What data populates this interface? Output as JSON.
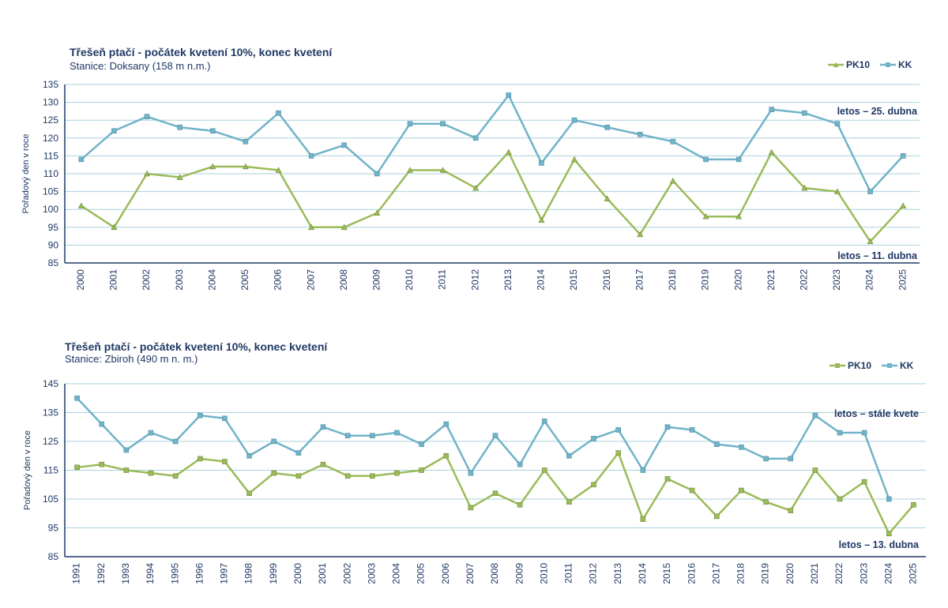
{
  "colors": {
    "pk10": "#9bbb59",
    "kk": "#71b3c8",
    "text": "#1f3864",
    "grid": "#a9d1de",
    "axis": "#1f3864"
  },
  "chart_data": [
    {
      "type": "line",
      "title": "Třešeň ptačí - počátek kvetení 10%, konec kvetení",
      "subtitle": "Stanice: Doksany (158 m n.m.)",
      "ylabel": "Pořadový den v roce",
      "ylim": [
        85,
        135
      ],
      "ystep": 5,
      "grid": true,
      "legend_position": "top-right",
      "categories": [
        "2000",
        "2001",
        "2002",
        "2003",
        "2004",
        "2005",
        "2006",
        "2007",
        "2008",
        "2009",
        "2010",
        "2011",
        "2012",
        "2013",
        "2014",
        "2015",
        "2016",
        "2017",
        "2018",
        "2019",
        "2020",
        "2021",
        "2022",
        "2023",
        "2024",
        "2025"
      ],
      "series": [
        {
          "name": "PK10",
          "color": "#9bbb59",
          "marker": "triangle",
          "values": [
            101,
            95,
            110,
            109,
            112,
            112,
            111,
            95,
            95,
            99,
            111,
            111,
            106,
            116,
            97,
            114,
            103,
            93,
            108,
            98,
            98,
            116,
            106,
            105,
            91,
            101
          ]
        },
        {
          "name": "KK",
          "color": "#71b3c8",
          "marker": "square",
          "values": [
            114,
            122,
            126,
            123,
            122,
            119,
            127,
            115,
            118,
            110,
            124,
            124,
            120,
            132,
            113,
            125,
            123,
            121,
            119,
            114,
            114,
            128,
            127,
            124,
            105,
            115
          ]
        }
      ],
      "annotations": [
        "letos – 25. dubna",
        "letos – 11. dubna"
      ]
    },
    {
      "type": "line",
      "title": "Třešeň ptačí - počátek kvetení 10%, konec kvetení",
      "subtitle": "Stanice: Zbiroh (490 m n. m.)",
      "ylabel": "Pořadový den v roce",
      "ylim": [
        85,
        145
      ],
      "ystep": 10,
      "grid": true,
      "legend_position": "top-right",
      "categories": [
        "1991",
        "1992",
        "1993",
        "1994",
        "1995",
        "1996",
        "1997",
        "1998",
        "1999",
        "2000",
        "2001",
        "2002",
        "2003",
        "2004",
        "2005",
        "2006",
        "2007",
        "2008",
        "2009",
        "2010",
        "2011",
        "2012",
        "2013",
        "2014",
        "2015",
        "2016",
        "2017",
        "2018",
        "2019",
        "2020",
        "2021",
        "2022",
        "2023",
        "2024",
        "2025"
      ],
      "series": [
        {
          "name": "PK10",
          "color": "#9bbb59",
          "marker": "square",
          "values": [
            116,
            117,
            115,
            114,
            113,
            119,
            118,
            107,
            114,
            113,
            117,
            113,
            113,
            114,
            115,
            120,
            102,
            107,
            103,
            115,
            104,
            110,
            121,
            98,
            112,
            108,
            99,
            108,
            104,
            101,
            115,
            105,
            111,
            93,
            103
          ]
        },
        {
          "name": "KK",
          "color": "#71b3c8",
          "marker": "square",
          "values": [
            140,
            131,
            122,
            128,
            125,
            134,
            133,
            120,
            125,
            121,
            130,
            127,
            127,
            128,
            124,
            131,
            114,
            127,
            117,
            132,
            120,
            126,
            129,
            115,
            130,
            129,
            124,
            123,
            119,
            119,
            134,
            128,
            128,
            105,
            null
          ]
        }
      ],
      "annotations": [
        "letos – stále kvete",
        "letos – 13. dubna"
      ]
    }
  ]
}
